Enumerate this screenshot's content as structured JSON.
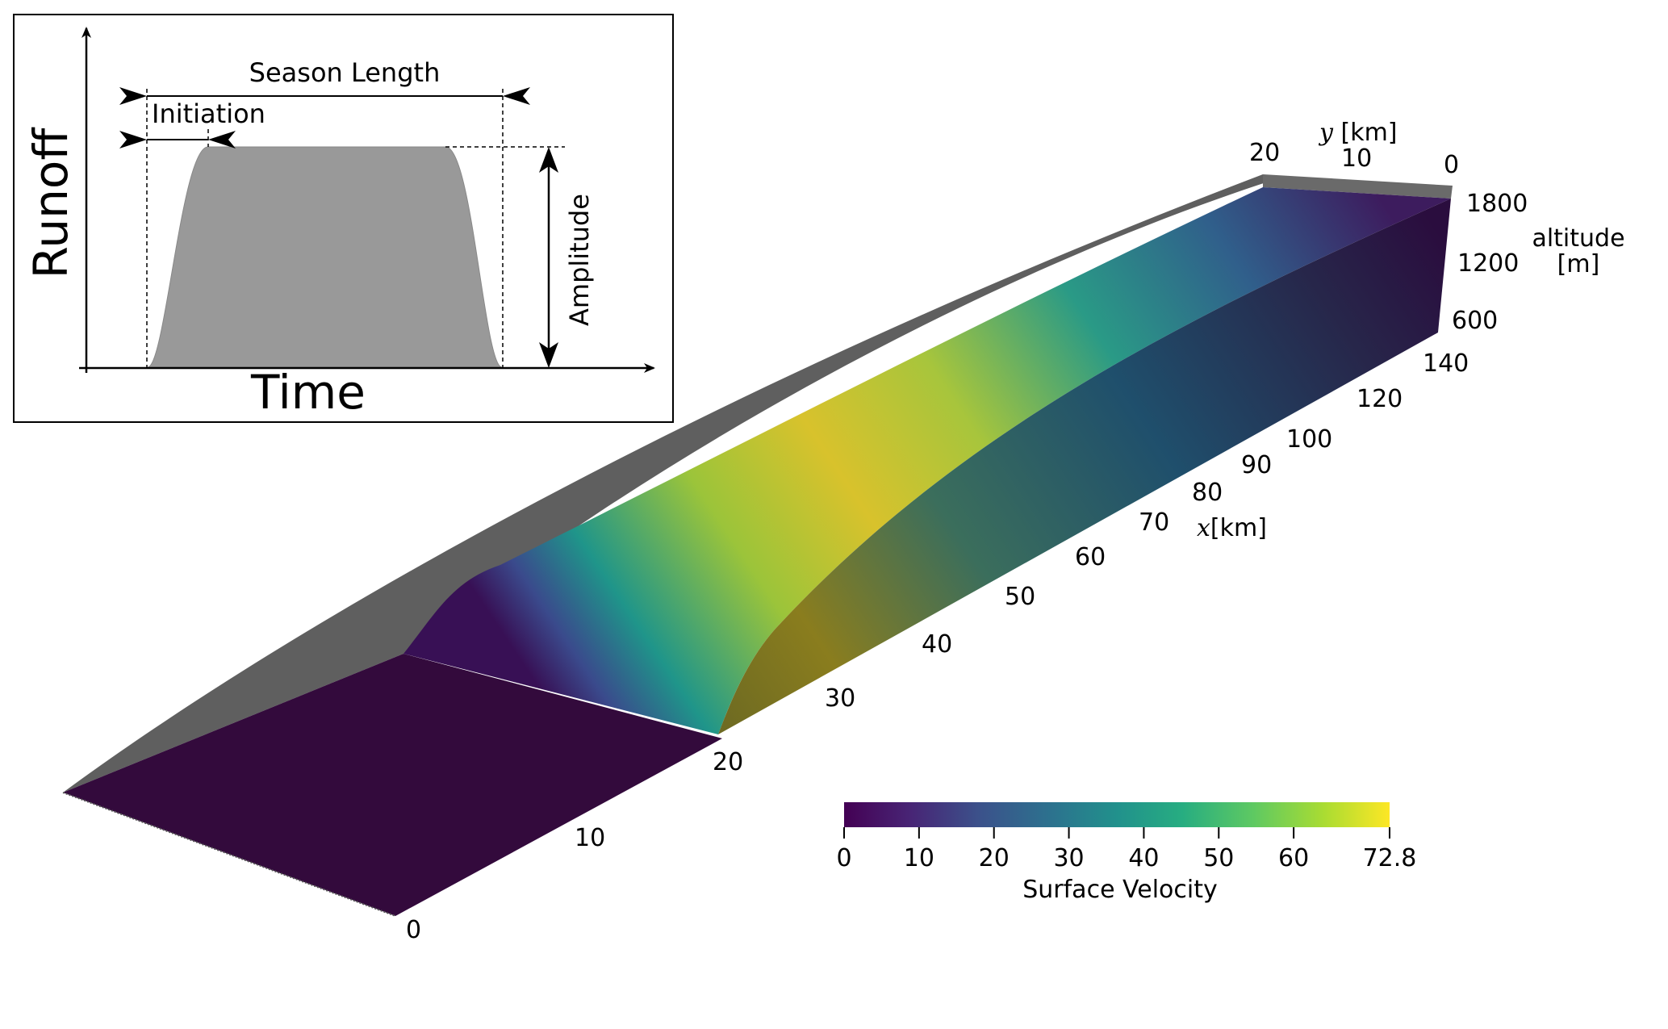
{
  "inset": {
    "ylabel": "Runoff",
    "xlabel": "Time",
    "season_length_label": "Season Length",
    "initiation_label": "Initiation",
    "amplitude_label": "Amplitude"
  },
  "axes": {
    "x_label_var": "x",
    "x_label_unit": "[km]",
    "x_ticks": [
      "0",
      "10",
      "20",
      "30",
      "40",
      "50",
      "60",
      "70",
      "80",
      "90",
      "100",
      "120",
      "140"
    ],
    "y_label_var": "y",
    "y_label_unit": " [km]",
    "y_ticks": [
      "20",
      "10",
      "0"
    ],
    "z_label_line1": "altitude",
    "z_label_line2": "[m]",
    "z_ticks": [
      "1800",
      "1200",
      "600"
    ]
  },
  "colorbar": {
    "label": "Surface Velocity",
    "ticks": [
      "0",
      "10",
      "20",
      "30",
      "40",
      "50",
      "60",
      "72.8"
    ],
    "tick_values": [
      0,
      10,
      20,
      30,
      40,
      50,
      60,
      72.8
    ],
    "min": 0,
    "max": 72.8,
    "colormap": "viridis",
    "colors": [
      "#440154",
      "#3b528b",
      "#21918c",
      "#5ec962",
      "#fde725"
    ]
  },
  "colors": {
    "bed_grey": "#5f5f5f",
    "inset_fill": "#999999",
    "low_velocity": "#330a3c",
    "high_velocity": "#d8c22c"
  }
}
